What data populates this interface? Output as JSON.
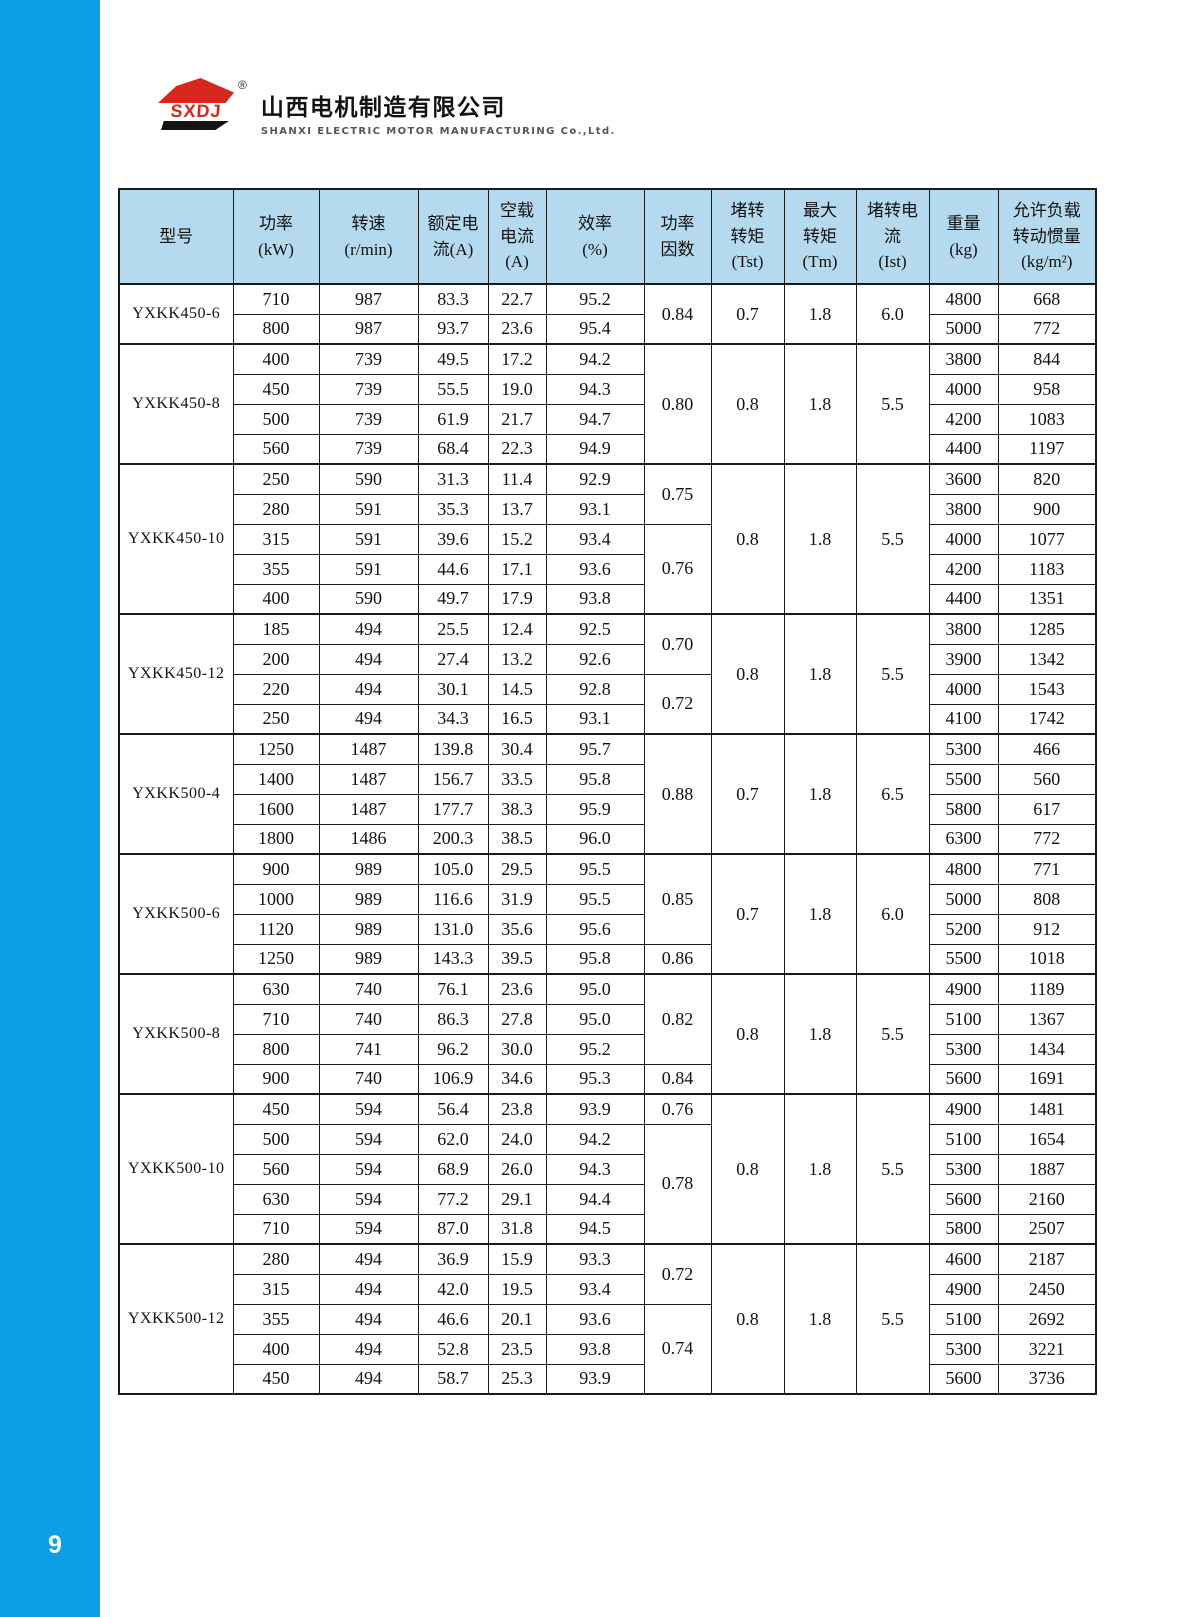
{
  "page": {
    "page_number": "9"
  },
  "colors": {
    "sidebar_blue": "#0c9fe5",
    "table_header_blue": "#b5d9ef",
    "logo_red": "#d7281e",
    "border_black": "#1a1a1a"
  },
  "logo": {
    "abbr": "SXDJ",
    "registered_mark": "®",
    "company_cn": "山西电机制造有限公司",
    "company_en": "SHANXI ELECTRIC MOTOR MANUFACTURING Co.,Ltd."
  },
  "table": {
    "headers": [
      {
        "key": "model",
        "lines": [
          "型号"
        ]
      },
      {
        "key": "power",
        "lines": [
          "功率",
          "(kW)"
        ]
      },
      {
        "key": "speed",
        "lines": [
          "转速",
          "(r/min)"
        ]
      },
      {
        "key": "rated-current",
        "lines": [
          "额定电",
          "流(A)"
        ]
      },
      {
        "key": "no-load-current",
        "lines": [
          "空载",
          "电流",
          "(A)"
        ]
      },
      {
        "key": "efficiency",
        "lines": [
          "效率",
          "(%)"
        ]
      },
      {
        "key": "power-factor",
        "lines": [
          "功率",
          "因数"
        ]
      },
      {
        "key": "locked-rotor-torque",
        "lines": [
          "堵转",
          "转矩",
          "(Tst)"
        ]
      },
      {
        "key": "max-torque",
        "lines": [
          "最大",
          "转矩",
          "(Tm)"
        ]
      },
      {
        "key": "locked-rotor-current",
        "lines": [
          "堵转电",
          "流",
          "(Ist)"
        ]
      },
      {
        "key": "weight",
        "lines": [
          "重量",
          "(kg)"
        ]
      },
      {
        "key": "inertia",
        "lines": [
          "允许负载",
          "转动惯量",
          "(kg/m²)"
        ]
      }
    ],
    "groups": [
      {
        "model": "YXKK450-6",
        "rows": [
          [
            "710",
            "987",
            "83.3",
            "22.7",
            "95.2",
            "4800",
            "668"
          ],
          [
            "800",
            "987",
            "93.7",
            "23.6",
            "95.4",
            "5000",
            "772"
          ]
        ],
        "power_factor": [
          {
            "value": "0.84",
            "span": 2
          }
        ],
        "tst": "0.7",
        "tm": "1.8",
        "ist": "6.0"
      },
      {
        "model": "YXKK450-8",
        "rows": [
          [
            "400",
            "739",
            "49.5",
            "17.2",
            "94.2",
            "3800",
            "844"
          ],
          [
            "450",
            "739",
            "55.5",
            "19.0",
            "94.3",
            "4000",
            "958"
          ],
          [
            "500",
            "739",
            "61.9",
            "21.7",
            "94.7",
            "4200",
            "1083"
          ],
          [
            "560",
            "739",
            "68.4",
            "22.3",
            "94.9",
            "4400",
            "1197"
          ]
        ],
        "power_factor": [
          {
            "value": "0.80",
            "span": 4
          }
        ],
        "tst": "0.8",
        "tm": "1.8",
        "ist": "5.5"
      },
      {
        "model": "YXKK450-10",
        "rows": [
          [
            "250",
            "590",
            "31.3",
            "11.4",
            "92.9",
            "3600",
            "820"
          ],
          [
            "280",
            "591",
            "35.3",
            "13.7",
            "93.1",
            "3800",
            "900"
          ],
          [
            "315",
            "591",
            "39.6",
            "15.2",
            "93.4",
            "4000",
            "1077"
          ],
          [
            "355",
            "591",
            "44.6",
            "17.1",
            "93.6",
            "4200",
            "1183"
          ],
          [
            "400",
            "590",
            "49.7",
            "17.9",
            "93.8",
            "4400",
            "1351"
          ]
        ],
        "power_factor": [
          {
            "value": "0.75",
            "span": 2
          },
          {
            "value": "0.76",
            "span": 3
          }
        ],
        "tst": "0.8",
        "tm": "1.8",
        "ist": "5.5"
      },
      {
        "model": "YXKK450-12",
        "rows": [
          [
            "185",
            "494",
            "25.5",
            "12.4",
            "92.5",
            "3800",
            "1285"
          ],
          [
            "200",
            "494",
            "27.4",
            "13.2",
            "92.6",
            "3900",
            "1342"
          ],
          [
            "220",
            "494",
            "30.1",
            "14.5",
            "92.8",
            "4000",
            "1543"
          ],
          [
            "250",
            "494",
            "34.3",
            "16.5",
            "93.1",
            "4100",
            "1742"
          ]
        ],
        "power_factor": [
          {
            "value": "0.70",
            "span": 2
          },
          {
            "value": "0.72",
            "span": 2
          }
        ],
        "tst": "0.8",
        "tm": "1.8",
        "ist": "5.5"
      },
      {
        "model": "YXKK500-4",
        "rows": [
          [
            "1250",
            "1487",
            "139.8",
            "30.4",
            "95.7",
            "5300",
            "466"
          ],
          [
            "1400",
            "1487",
            "156.7",
            "33.5",
            "95.8",
            "5500",
            "560"
          ],
          [
            "1600",
            "1487",
            "177.7",
            "38.3",
            "95.9",
            "5800",
            "617"
          ],
          [
            "1800",
            "1486",
            "200.3",
            "38.5",
            "96.0",
            "6300",
            "772"
          ]
        ],
        "power_factor": [
          {
            "value": "0.88",
            "span": 4
          }
        ],
        "tst": "0.7",
        "tm": "1.8",
        "ist": "6.5"
      },
      {
        "model": "YXKK500-6",
        "rows": [
          [
            "900",
            "989",
            "105.0",
            "29.5",
            "95.5",
            "4800",
            "771"
          ],
          [
            "1000",
            "989",
            "116.6",
            "31.9",
            "95.5",
            "5000",
            "808"
          ],
          [
            "1120",
            "989",
            "131.0",
            "35.6",
            "95.6",
            "5200",
            "912"
          ],
          [
            "1250",
            "989",
            "143.3",
            "39.5",
            "95.8",
            "5500",
            "1018"
          ]
        ],
        "power_factor": [
          {
            "value": "0.85",
            "span": 3
          },
          {
            "value": "0.86",
            "span": 1
          }
        ],
        "tst": "0.7",
        "tm": "1.8",
        "ist": "6.0"
      },
      {
        "model": "YXKK500-8",
        "rows": [
          [
            "630",
            "740",
            "76.1",
            "23.6",
            "95.0",
            "4900",
            "1189"
          ],
          [
            "710",
            "740",
            "86.3",
            "27.8",
            "95.0",
            "5100",
            "1367"
          ],
          [
            "800",
            "741",
            "96.2",
            "30.0",
            "95.2",
            "5300",
            "1434"
          ],
          [
            "900",
            "740",
            "106.9",
            "34.6",
            "95.3",
            "5600",
            "1691"
          ]
        ],
        "power_factor": [
          {
            "value": "0.82",
            "span": 3
          },
          {
            "value": "0.84",
            "span": 1
          }
        ],
        "tst": "0.8",
        "tm": "1.8",
        "ist": "5.5"
      },
      {
        "model": "YXKK500-10",
        "rows": [
          [
            "450",
            "594",
            "56.4",
            "23.8",
            "93.9",
            "4900",
            "1481"
          ],
          [
            "500",
            "594",
            "62.0",
            "24.0",
            "94.2",
            "5100",
            "1654"
          ],
          [
            "560",
            "594",
            "68.9",
            "26.0",
            "94.3",
            "5300",
            "1887"
          ],
          [
            "630",
            "594",
            "77.2",
            "29.1",
            "94.4",
            "5600",
            "2160"
          ],
          [
            "710",
            "594",
            "87.0",
            "31.8",
            "94.5",
            "5800",
            "2507"
          ]
        ],
        "power_factor": [
          {
            "value": "0.76",
            "span": 1
          },
          {
            "value": "0.78",
            "span": 4
          }
        ],
        "tst": "0.8",
        "tm": "1.8",
        "ist": "5.5"
      },
      {
        "model": "YXKK500-12",
        "rows": [
          [
            "280",
            "494",
            "36.9",
            "15.9",
            "93.3",
            "4600",
            "2187"
          ],
          [
            "315",
            "494",
            "42.0",
            "19.5",
            "93.4",
            "4900",
            "2450"
          ],
          [
            "355",
            "494",
            "46.6",
            "20.1",
            "93.6",
            "5100",
            "2692"
          ],
          [
            "400",
            "494",
            "52.8",
            "23.5",
            "93.8",
            "5300",
            "3221"
          ],
          [
            "450",
            "494",
            "58.7",
            "25.3",
            "93.9",
            "5600",
            "3736"
          ]
        ],
        "power_factor": [
          {
            "value": "0.72",
            "span": 2
          },
          {
            "value": "0.74",
            "span": 3
          }
        ],
        "tst": "0.8",
        "tm": "1.8",
        "ist": "5.5"
      }
    ]
  }
}
